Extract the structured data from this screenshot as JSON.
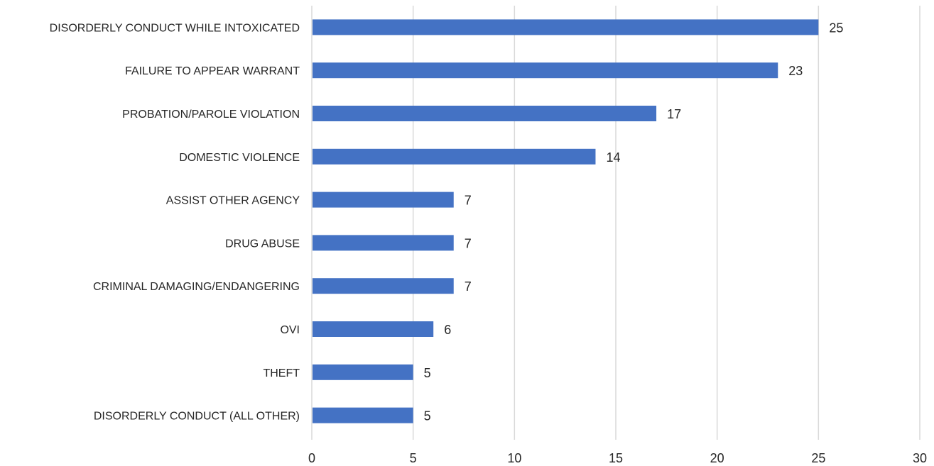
{
  "chart_data": {
    "type": "bar",
    "orientation": "horizontal",
    "categories": [
      "DISORDERLY CONDUCT WHILE INTOXICATED",
      "FAILURE TO APPEAR WARRANT",
      "PROBATION/PAROLE VIOLATION",
      "DOMESTIC VIOLENCE",
      "ASSIST OTHER AGENCY",
      "DRUG ABUSE",
      "CRIMINAL DAMAGING/ENDANGERING",
      "OVI",
      "THEFT",
      "DISORDERLY CONDUCT (ALL OTHER)"
    ],
    "values": [
      25,
      23,
      17,
      14,
      7,
      7,
      7,
      6,
      5,
      5
    ],
    "xlim": [
      0,
      30
    ],
    "xticks": [
      0,
      5,
      10,
      15,
      20,
      25,
      30
    ],
    "grid": true,
    "data_labels": true,
    "bar_color": "#4472C4",
    "grid_color": "#D9D9D9"
  }
}
